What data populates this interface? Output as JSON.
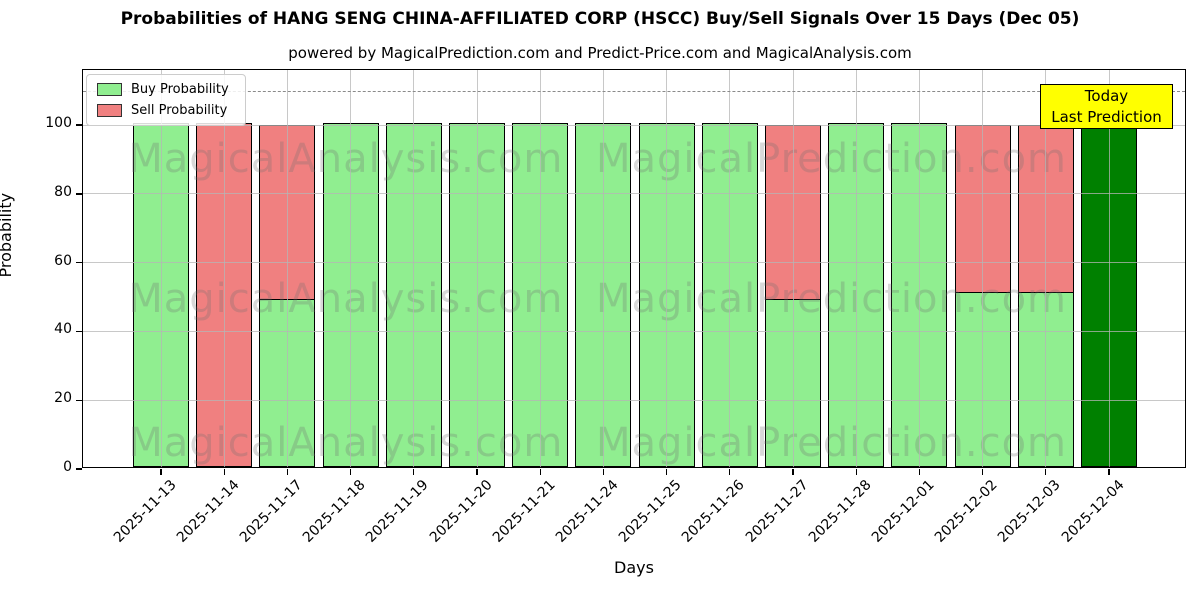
{
  "title": "Probabilities of HANG SENG CHINA-AFFILIATED CORP (HSCC) Buy/Sell Signals Over 15 Days (Dec 05)",
  "subtitle": "powered by MagicalPrediction.com and Predict-Price.com and MagicalAnalysis.com",
  "legend": {
    "buy_label": "Buy Probability",
    "sell_label": "Sell Probability"
  },
  "annotation": {
    "line1": "Today",
    "line2": "Last Prediction"
  },
  "axes": {
    "x_label": "Days",
    "y_label": "Probability"
  },
  "watermarks": {
    "left_text": "MagicalAnalysis.com",
    "right_text": "MagicalPrediction.com"
  },
  "colors": {
    "buy": "#90ee90",
    "sell": "#f08080",
    "today": "#008000",
    "annotation_bg": "#ffff00",
    "grid": "#b5b5b5"
  },
  "chart_data": {
    "type": "bar",
    "stacked": true,
    "title": "Probabilities of HANG SENG CHINA-AFFILIATED CORP (HSCC) Buy/Sell Signals Over 15 Days (Dec 05)",
    "xlabel": "Days",
    "ylabel": "Probability",
    "ylim": [
      0,
      116
    ],
    "y_ticks": [
      0,
      20,
      40,
      60,
      80,
      100
    ],
    "dashed_line_y": 110,
    "grid": true,
    "legend_position": "upper left",
    "categories": [
      "2025-11-13",
      "2025-11-14",
      "2025-11-17",
      "2025-11-18",
      "2025-11-19",
      "2025-11-20",
      "2025-11-21",
      "2025-11-24",
      "2025-11-25",
      "2025-11-26",
      "2025-11-27",
      "2025-11-28",
      "2025-12-01",
      "2025-12-02",
      "2025-12-03",
      "2025-12-04"
    ],
    "series": [
      {
        "name": "Buy Probability",
        "color": "#90ee90",
        "values": [
          100,
          0,
          49,
          100,
          100,
          100,
          100,
          100,
          100,
          100,
          49,
          100,
          100,
          51,
          51,
          100
        ]
      },
      {
        "name": "Sell Probability",
        "color": "#f08080",
        "values": [
          0,
          100,
          51,
          0,
          0,
          0,
          0,
          0,
          0,
          0,
          51,
          0,
          0,
          49,
          49,
          0
        ]
      }
    ],
    "today_index": 15,
    "today_color": "#008000"
  }
}
